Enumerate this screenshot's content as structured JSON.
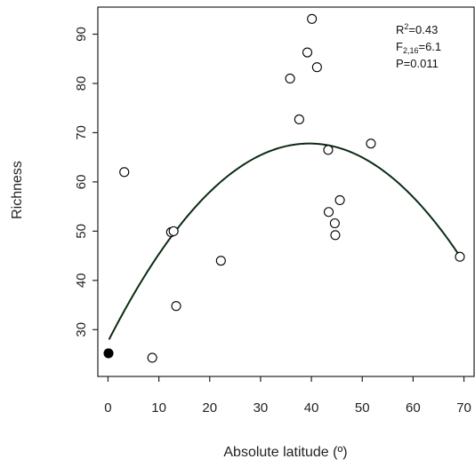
{
  "chart_data": {
    "type": "scatter",
    "title": "",
    "xlabel": "Absolute latitude (º)",
    "ylabel": "Richness",
    "xlim": [
      -2,
      72
    ],
    "ylim": [
      20.5,
      95.5
    ],
    "xticks": [
      0,
      10,
      20,
      30,
      40,
      50,
      60,
      70
    ],
    "yticks": [
      30,
      40,
      50,
      60,
      70,
      80,
      90
    ],
    "xtick_labels": [
      "0",
      "10",
      "20",
      "30",
      "40",
      "50",
      "60",
      "70"
    ],
    "ytick_labels": [
      "30",
      "40",
      "50",
      "60",
      "70",
      "80",
      "90"
    ],
    "grid": false,
    "series": [
      {
        "marker": "open-circle",
        "points": [
          {
            "x": 3.2,
            "y": 62
          },
          {
            "x": 8.7,
            "y": 24.3
          },
          {
            "x": 12.4,
            "y": 49.8
          },
          {
            "x": 12.9,
            "y": 50
          },
          {
            "x": 13.4,
            "y": 34.8
          },
          {
            "x": 22.2,
            "y": 44
          },
          {
            "x": 35.8,
            "y": 81
          },
          {
            "x": 37.6,
            "y": 72.7
          },
          {
            "x": 39.2,
            "y": 86.3
          },
          {
            "x": 40.1,
            "y": 93.1
          },
          {
            "x": 41.1,
            "y": 83.3
          },
          {
            "x": 43.3,
            "y": 66.5
          },
          {
            "x": 43.4,
            "y": 53.9
          },
          {
            "x": 44.6,
            "y": 51.6
          },
          {
            "x": 44.7,
            "y": 49.2
          },
          {
            "x": 45.6,
            "y": 56.3
          },
          {
            "x": 51.7,
            "y": 67.8
          },
          {
            "x": 69.2,
            "y": 44.8
          }
        ]
      },
      {
        "marker": "filled-circle",
        "points": [
          {
            "x": 0.1,
            "y": 25.2
          }
        ]
      }
    ],
    "fit": {
      "type": "quadratic",
      "x_range": [
        0.2,
        69.2
      ],
      "y_start": 28,
      "vertex": {
        "x": 39.6,
        "y": 67.8
      },
      "y_end": 44.9,
      "color": "#0b2b12"
    },
    "annotation": {
      "r2_label": "R",
      "r2_sup": "2",
      "r2_value": "=0.43",
      "f_label": "F",
      "f_sub": "2,16",
      "f_value": "=6.1",
      "p_label": "P=0.011"
    },
    "colors": {
      "axes": "#222222",
      "points": "#000000",
      "fit_line": "#0b2b12"
    }
  }
}
